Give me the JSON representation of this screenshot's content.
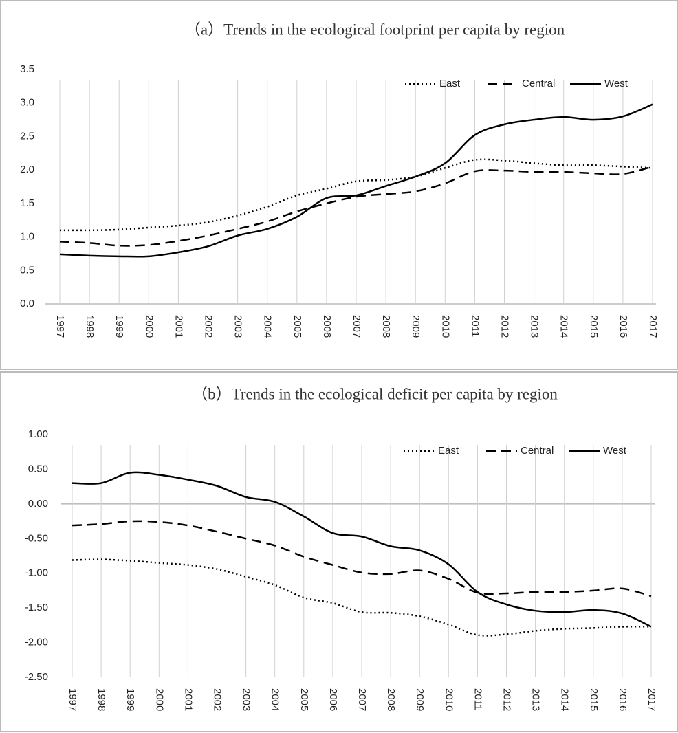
{
  "chart_data": [
    {
      "type": "line",
      "title": "（a）Trends in the ecological footprint per capita by region",
      "categories": [
        "1997",
        "1998",
        "1999",
        "2000",
        "2001",
        "2002",
        "2003",
        "2004",
        "2005",
        "2006",
        "2007",
        "2008",
        "2009",
        "2010",
        "2011",
        "2012",
        "2013",
        "2014",
        "2015",
        "2016",
        "2017"
      ],
      "series": [
        {
          "name": "East",
          "color": "#000000",
          "line_style": "dotted",
          "values": [
            1.1,
            1.1,
            1.11,
            1.14,
            1.17,
            1.22,
            1.32,
            1.45,
            1.62,
            1.72,
            1.83,
            1.85,
            1.9,
            2.03,
            2.15,
            2.14,
            2.1,
            2.07,
            2.07,
            2.05,
            2.03
          ]
        },
        {
          "name": "Central",
          "color": "#000000",
          "line_style": "dashed",
          "values": [
            0.93,
            0.91,
            0.87,
            0.88,
            0.94,
            1.02,
            1.12,
            1.23,
            1.38,
            1.5,
            1.6,
            1.64,
            1.68,
            1.8,
            1.98,
            1.99,
            1.97,
            1.97,
            1.95,
            1.94,
            2.05
          ]
        },
        {
          "name": "West",
          "color": "#000000",
          "line_style": "solid",
          "values": [
            0.74,
            0.72,
            0.71,
            0.71,
            0.77,
            0.86,
            1.02,
            1.12,
            1.3,
            1.58,
            1.62,
            1.76,
            1.9,
            2.1,
            2.52,
            2.68,
            2.75,
            2.79,
            2.75,
            2.8,
            2.98
          ]
        }
      ],
      "ylim": [
        0,
        3.5
      ],
      "yticks": [
        {
          "value": 0,
          "label": "0.0"
        },
        0.5,
        {
          "value": 1,
          "label": "1.0"
        },
        1.5,
        {
          "value": 2,
          "label": "2.0"
        },
        2.5,
        {
          "value": 3,
          "label": "3.0"
        },
        3.5
      ],
      "grid": "x",
      "legend": "top-right"
    },
    {
      "type": "line",
      "title": "（b）Trends in the ecological deficit per capita by region",
      "categories": [
        "1997",
        "1998",
        "1999",
        "2000",
        "2001",
        "2002",
        "2003",
        "2004",
        "2005",
        "2006",
        "2007",
        "2008",
        "2009",
        "2010",
        "2011",
        "2012",
        "2013",
        "2014",
        "2015",
        "2016",
        "2017"
      ],
      "series": [
        {
          "name": "East",
          "color": "#000000",
          "line_style": "dotted",
          "values": [
            -0.81,
            -0.8,
            -0.82,
            -0.85,
            -0.88,
            -0.94,
            -1.05,
            -1.17,
            -1.35,
            -1.43,
            -1.56,
            -1.57,
            -1.62,
            -1.74,
            -1.89,
            -1.88,
            -1.83,
            -1.8,
            -1.79,
            -1.77,
            -1.77
          ]
        },
        {
          "name": "Central",
          "color": "#000000",
          "line_style": "dashed",
          "values": [
            -0.31,
            -0.29,
            -0.25,
            -0.26,
            -0.31,
            -0.4,
            -0.5,
            -0.6,
            -0.76,
            -0.88,
            -0.99,
            -1.01,
            -0.96,
            -1.08,
            -1.28,
            -1.29,
            -1.27,
            -1.27,
            -1.25,
            -1.22,
            -1.33
          ]
        },
        {
          "name": "West",
          "color": "#000000",
          "line_style": "solid",
          "values": [
            0.3,
            0.3,
            0.45,
            0.42,
            0.35,
            0.26,
            0.1,
            0.03,
            -0.18,
            -0.42,
            -0.47,
            -0.61,
            -0.67,
            -0.87,
            -1.27,
            -1.45,
            -1.54,
            -1.56,
            -1.53,
            -1.58,
            -1.77
          ]
        }
      ],
      "ylim": [
        -2.5,
        1
      ],
      "yticks": [
        {
          "value": -2.5,
          "label": "-2.50"
        },
        {
          "value": -2,
          "label": "-2.00"
        },
        {
          "value": -1.5,
          "label": "-1.50"
        },
        {
          "value": -1,
          "label": "-1.00"
        },
        {
          "value": -0.5,
          "label": "-0.50"
        },
        {
          "value": 0,
          "label": "0.00"
        },
        {
          "value": 0.5,
          "label": "0.50"
        },
        {
          "value": 1,
          "label": "1.00"
        }
      ],
      "grid": "x",
      "legend": "top-right"
    }
  ]
}
